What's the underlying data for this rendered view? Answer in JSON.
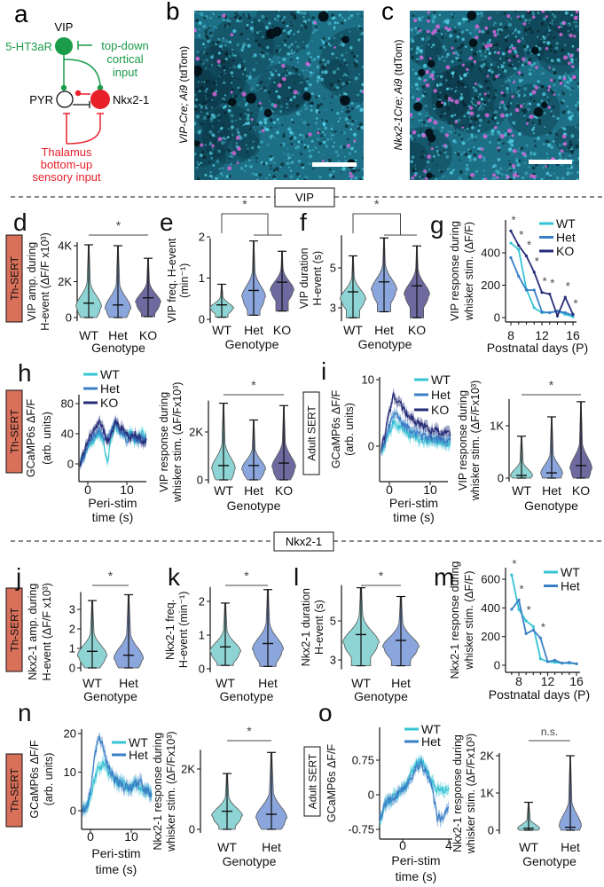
{
  "colors": {
    "WT": "#35c4d4",
    "Het": "#3a7fc6",
    "KO": "#262c78",
    "WT_fill": "#8fd4d4",
    "Het_fill": "#8aa6dc",
    "KO_fill": "#6e6aa0",
    "badge": "#d9705a",
    "vip": "#1a9c4a",
    "nkx": "#e8202a"
  },
  "schematic": {
    "label": "a",
    "vip": "VIP",
    "receptor": "5-HT3aR",
    "top_down": [
      "top-down",
      "cortical",
      "input"
    ],
    "pyr": "PYR",
    "nkx": "Nkx2-1",
    "thalamus": [
      "Thalamus",
      "bottom-up",
      "sensory input"
    ]
  },
  "images": [
    {
      "label": "b",
      "caption_italic": "VIP-Cre; Ai9",
      "caption_plain": " (tdTom)"
    },
    {
      "label": "c",
      "caption_italic": "Nkx2-1Cre; Ai9",
      "caption_plain": " (tdTom)"
    }
  ],
  "sections": {
    "vip": "VIP",
    "nkx": "Nkx2-1"
  },
  "badges": {
    "th_sert": "Th-SERT",
    "adult_sert": "Adult SERT"
  },
  "chart_data": [
    {
      "panel": "d",
      "type": "violin",
      "ylabel": [
        "VIP amp. during",
        "H-event (ΔF/F x10³)"
      ],
      "xlabel": "Genotype",
      "categories": [
        "WT",
        "Het",
        "KO"
      ],
      "medians": [
        800,
        700,
        1100
      ],
      "min": [
        0,
        0,
        50
      ],
      "max": [
        4050,
        4000,
        3300
      ],
      "yticks": [
        0,
        2000,
        4000
      ],
      "ytick_labels": [
        "0",
        "2K",
        "4K"
      ],
      "sig_label": "*",
      "sig_between": [
        0,
        2
      ]
    },
    {
      "panel": "e",
      "type": "violin",
      "ylabel": [
        "VIP freq. H-event",
        "(min⁻¹)"
      ],
      "xlabel": "Genotype",
      "categories": [
        "WT",
        "Het",
        "KO"
      ],
      "medians": [
        0.35,
        0.7,
        0.9
      ],
      "min": [
        0.05,
        0.1,
        0.2
      ],
      "max": [
        0.85,
        1.9,
        1.65
      ],
      "yticks": [
        0,
        1,
        2
      ],
      "ytick_labels": [
        "0",
        "1",
        "2"
      ],
      "sig_label": "*",
      "sig_group": [
        0,
        [
          1,
          2
        ]
      ]
    },
    {
      "panel": "f",
      "type": "violin",
      "ylabel": [
        "VIP duration",
        "H-event (s)"
      ],
      "xlabel": "Genotype",
      "categories": [
        "WT",
        "Het",
        "KO"
      ],
      "medians": [
        3.8,
        4.3,
        4.1
      ],
      "min": [
        2.5,
        2.8,
        2.5
      ],
      "max": [
        5.6,
        6.5,
        6.1
      ],
      "yticks": [
        3,
        5
      ],
      "ytick_labels": [
        "3",
        "5"
      ],
      "sig_label": "*",
      "sig_group": [
        0,
        [
          1,
          2
        ]
      ]
    },
    {
      "panel": "g",
      "type": "line",
      "ylabel": [
        "VIP response during",
        "whisker stim. (ΔF/F)"
      ],
      "xlabel": "Postnatal days (P)",
      "x": [
        8,
        9,
        10,
        11,
        12,
        13,
        14,
        15,
        16
      ],
      "xticks": [
        8,
        12,
        16
      ],
      "xtick_labels": [
        "8",
        "12",
        "16"
      ],
      "yticks": [
        0,
        200,
        400
      ],
      "ytick_labels": [
        "0",
        "200",
        "400"
      ],
      "legend": "top-right",
      "series": [
        {
          "name": "WT",
          "values": [
            460,
            420,
            175,
            60,
            30,
            30,
            40,
            20,
            5
          ]
        },
        {
          "name": "Het",
          "values": [
            370,
            255,
            170,
            170,
            35,
            30,
            40,
            30,
            15
          ]
        },
        {
          "name": "KO",
          "values": [
            535,
            445,
            380,
            280,
            155,
            145,
            10,
            125,
            20
          ]
        }
      ],
      "sig_label": "*",
      "sig_x": [
        8,
        9,
        10,
        11,
        12,
        13,
        15,
        16
      ]
    },
    {
      "panel": "h",
      "type": "line",
      "ylabel": [
        "GCaMP6s ΔF/F",
        "(arb. units)"
      ],
      "xlabel": [
        "Peri-stim",
        "time (s)"
      ],
      "x": [
        -2,
        -1,
        0,
        1,
        2,
        3,
        4,
        5,
        6,
        7,
        8,
        9,
        10,
        11,
        12,
        13,
        14,
        15
      ],
      "xticks": [
        0,
        10
      ],
      "xtick_labels": [
        "0",
        "10"
      ],
      "yticks": [
        0,
        40,
        80
      ],
      "ytick_labels": [
        "0",
        "40",
        "80"
      ],
      "legend": "top-left",
      "series": [
        {
          "name": "WT",
          "values": [
            5,
            10,
            20,
            30,
            35,
            40,
            30,
            0,
            35,
            50,
            45,
            40,
            35,
            45,
            30,
            35,
            40,
            35
          ]
        },
        {
          "name": "Het",
          "values": [
            0,
            8,
            25,
            35,
            40,
            45,
            35,
            30,
            45,
            55,
            45,
            40,
            30,
            40,
            35,
            30,
            35,
            30
          ]
        },
        {
          "name": "KO",
          "values": [
            0,
            15,
            30,
            40,
            50,
            55,
            45,
            30,
            40,
            55,
            50,
            45,
            40,
            35,
            40,
            35,
            30,
            30
          ]
        }
      ]
    },
    {
      "panel": "",
      "type": "violin",
      "ylabel": [
        "VIP response during",
        "whisker stim. (ΔF/Fx10³)"
      ],
      "xlabel": "Genotype",
      "categories": [
        "WT",
        "Het",
        "KO"
      ],
      "medians": [
        600,
        600,
        700
      ],
      "min": [
        0,
        0,
        0
      ],
      "max": [
        3200,
        2500,
        3100
      ],
      "yticks": [
        0,
        2000
      ],
      "ytick_labels": [
        "0",
        "2K"
      ],
      "sig_label": "*",
      "sig_between": [
        0,
        2
      ]
    },
    {
      "panel": "i",
      "type": "line",
      "ylabel": [
        "GCaMP6s ΔF/F",
        "(arb. units)"
      ],
      "xlabel": [
        "Peri-stim",
        "time (s)"
      ],
      "x": [
        -2,
        -1,
        0,
        1,
        2,
        3,
        4,
        5,
        6,
        7,
        8,
        9,
        10,
        11,
        12,
        13,
        14,
        15
      ],
      "xticks": [
        0,
        10
      ],
      "xtick_labels": [
        "0",
        "10"
      ],
      "yticks": [
        0,
        10
      ],
      "ytick_labels": [
        "0",
        "10"
      ],
      "legend": "top-right",
      "series": [
        {
          "name": "WT",
          "values": [
            -0.5,
            0.5,
            2,
            3.5,
            3,
            2.5,
            2,
            1.8,
            1.5,
            1.2,
            1,
            1,
            0.8,
            0.8,
            0.6,
            0.5,
            0.5,
            0.5
          ]
        },
        {
          "name": "Het",
          "values": [
            -0.5,
            1,
            3,
            5,
            4.5,
            3.5,
            3,
            2.5,
            2,
            1.8,
            1.5,
            1.3,
            1.2,
            1,
            1,
            0.8,
            0.8,
            0.7
          ]
        },
        {
          "name": "KO",
          "values": [
            -0.5,
            2,
            5,
            7.5,
            7,
            6,
            5,
            4.5,
            4,
            3.5,
            3,
            3,
            2.5,
            2.5,
            2.2,
            2,
            2,
            1.8
          ]
        }
      ]
    },
    {
      "panel": "",
      "type": "violin",
      "ylabel": [
        "VIP response during",
        "whisker stim. (ΔF/Fx10³)"
      ],
      "xlabel": "Genotype",
      "categories": [
        "WT",
        "Het",
        "KO"
      ],
      "medians": [
        50,
        100,
        240
      ],
      "min": [
        0,
        0,
        0
      ],
      "max": [
        800,
        1170,
        1460
      ],
      "yticks": [
        0,
        1000
      ],
      "ytick_labels": [
        "0",
        "1K"
      ],
      "sig_label": "*",
      "sig_between": [
        0,
        2
      ]
    },
    {
      "panel": "j",
      "type": "violin",
      "ylabel": [
        "Nkx2-1 amp. during",
        "H-event (ΔF/F x10³)"
      ],
      "xlabel": "Genotype",
      "categories": [
        "WT",
        "Het"
      ],
      "medians": [
        0.85,
        0.65
      ],
      "min": [
        0,
        0
      ],
      "max": [
        3.45,
        3.75
      ],
      "yticks": [
        0,
        1,
        2,
        3
      ],
      "ytick_labels": [
        "0",
        "1",
        "2",
        "3"
      ],
      "sig_label": "*",
      "sig_between": [
        0,
        1
      ]
    },
    {
      "panel": "k",
      "type": "violin",
      "ylabel": [
        "Nkx2-1 freq.",
        "H-event (min⁻¹)"
      ],
      "xlabel": "Genotype",
      "categories": [
        "WT",
        "Het"
      ],
      "medians": [
        0.65,
        0.75
      ],
      "min": [
        0.1,
        0.07
      ],
      "max": [
        1.95,
        2.35
      ],
      "yticks": [
        0,
        1,
        2
      ],
      "ytick_labels": [
        "0",
        "1",
        "2"
      ],
      "sig_label": "*",
      "sig_between": [
        0,
        1
      ]
    },
    {
      "panel": "l",
      "type": "violin",
      "ylabel": [
        "Nkx2-1 duration",
        "H-event (s)"
      ],
      "xlabel": "Genotype",
      "categories": [
        "WT",
        "Het"
      ],
      "medians": [
        4.3,
        4.0
      ],
      "min": [
        2.7,
        2.7
      ],
      "max": [
        6.7,
        6.25
      ],
      "yticks": [
        3,
        5
      ],
      "ytick_labels": [
        "3",
        "5"
      ],
      "sig_label": "*",
      "sig_between": [
        0,
        1
      ]
    },
    {
      "panel": "m",
      "type": "line",
      "ylabel": [
        "Nkx2-1 response during",
        "whisker stim. (ΔF/F)"
      ],
      "xlabel": "Postnatal days (P)",
      "x": [
        7,
        8,
        9,
        10,
        11,
        12,
        13,
        14,
        15,
        16
      ],
      "xticks": [
        8,
        12,
        16
      ],
      "xtick_labels": [
        "8",
        "12",
        "16"
      ],
      "yticks": [
        0,
        200,
        400,
        600
      ],
      "ytick_labels": [
        "0",
        "200",
        "400",
        "600"
      ],
      "legend": "top-right",
      "series": [
        {
          "name": "WT",
          "values": [
            630,
            390,
            310,
            270,
            45,
            25,
            20,
            15,
            15,
            10
          ]
        },
        {
          "name": "Het",
          "values": [
            390,
            455,
            220,
            245,
            190,
            25,
            35,
            15,
            20,
            10
          ]
        }
      ],
      "sig_label": "*",
      "sig_x": [
        7,
        8,
        9,
        11
      ]
    },
    {
      "panel": "n",
      "type": "line",
      "ylabel": [
        "GCaMP6s ΔF/F",
        "(arb. units)"
      ],
      "xlabel": [
        "Peri-stim",
        "time (s)"
      ],
      "x": [
        -2,
        -1,
        0,
        1,
        2,
        3,
        4,
        5,
        6,
        7,
        8,
        9,
        10,
        11,
        12,
        13,
        14,
        15
      ],
      "xticks": [
        0,
        10
      ],
      "xtick_labels": [
        "0",
        "10"
      ],
      "yticks": [
        0,
        10,
        20
      ],
      "ytick_labels": [
        "0",
        "10",
        "20"
      ],
      "legend": "top-right",
      "series": [
        {
          "name": "WT",
          "values": [
            0,
            1,
            3,
            8,
            11,
            12,
            10,
            9,
            8,
            7,
            7,
            6,
            6,
            7,
            6,
            5,
            5,
            4
          ]
        },
        {
          "name": "Het",
          "values": [
            0,
            1,
            5,
            14,
            19,
            17,
            12,
            10,
            8,
            7,
            6,
            6,
            6,
            7,
            8,
            6,
            5,
            4
          ]
        }
      ]
    },
    {
      "panel": "",
      "type": "violin",
      "ylabel": [
        "Nkx2-1 response during",
        "whisker stim. (ΔF/Fx10³)"
      ],
      "xlabel": "Genotype",
      "categories": [
        "WT",
        "Het"
      ],
      "medians": [
        600,
        500
      ],
      "min": [
        0,
        0
      ],
      "max": [
        1850,
        2550
      ],
      "yticks": [
        0,
        2000
      ],
      "ytick_labels": [
        "0",
        "2K"
      ],
      "sig_label": "*",
      "sig_between": [
        0,
        1
      ]
    },
    {
      "panel": "o",
      "type": "line",
      "ylabel": [
        "GCaMP6s ΔF/F"
      ],
      "xlabel": [
        "Peri-stim",
        "time (s)"
      ],
      "x": [
        -2,
        -1.5,
        -1,
        -0.5,
        0,
        0.5,
        1,
        1.5,
        2,
        2.5,
        3,
        3.5,
        4
      ],
      "xticks": [
        0,
        4
      ],
      "xtick_labels": [
        "0",
        "4"
      ],
      "yticks": [
        -0.75,
        0,
        0.75
      ],
      "ytick_labels": [
        "-0.75",
        "0",
        "0.75"
      ],
      "legend": "top-right",
      "series": [
        {
          "name": "WT",
          "values": [
            -0.6,
            -0.2,
            -0.1,
            0,
            0.1,
            0.3,
            0.6,
            0.75,
            0.6,
            0.3,
            0.1,
            0.1,
            0.1
          ]
        },
        {
          "name": "Het",
          "values": [
            -0.5,
            -0.2,
            -0.1,
            0,
            0.1,
            0.3,
            0.5,
            0.7,
            0.5,
            0.2,
            -0.5,
            -0.5,
            -0.2
          ]
        }
      ]
    },
    {
      "panel": "",
      "type": "violin",
      "ylabel": [
        "Nkx2-1 response during",
        "whisker stim. (ΔF/Fx10³)"
      ],
      "xlabel": "Genotype",
      "categories": [
        "WT",
        "Het"
      ],
      "medians": [
        50,
        80
      ],
      "min": [
        0,
        0
      ],
      "max": [
        750,
        2000
      ],
      "yticks": [
        0,
        1000,
        2000
      ],
      "ytick_labels": [
        "0",
        "1K",
        "2K"
      ],
      "sig_label": "n.s.",
      "sig_between": [
        0,
        1
      ]
    }
  ]
}
